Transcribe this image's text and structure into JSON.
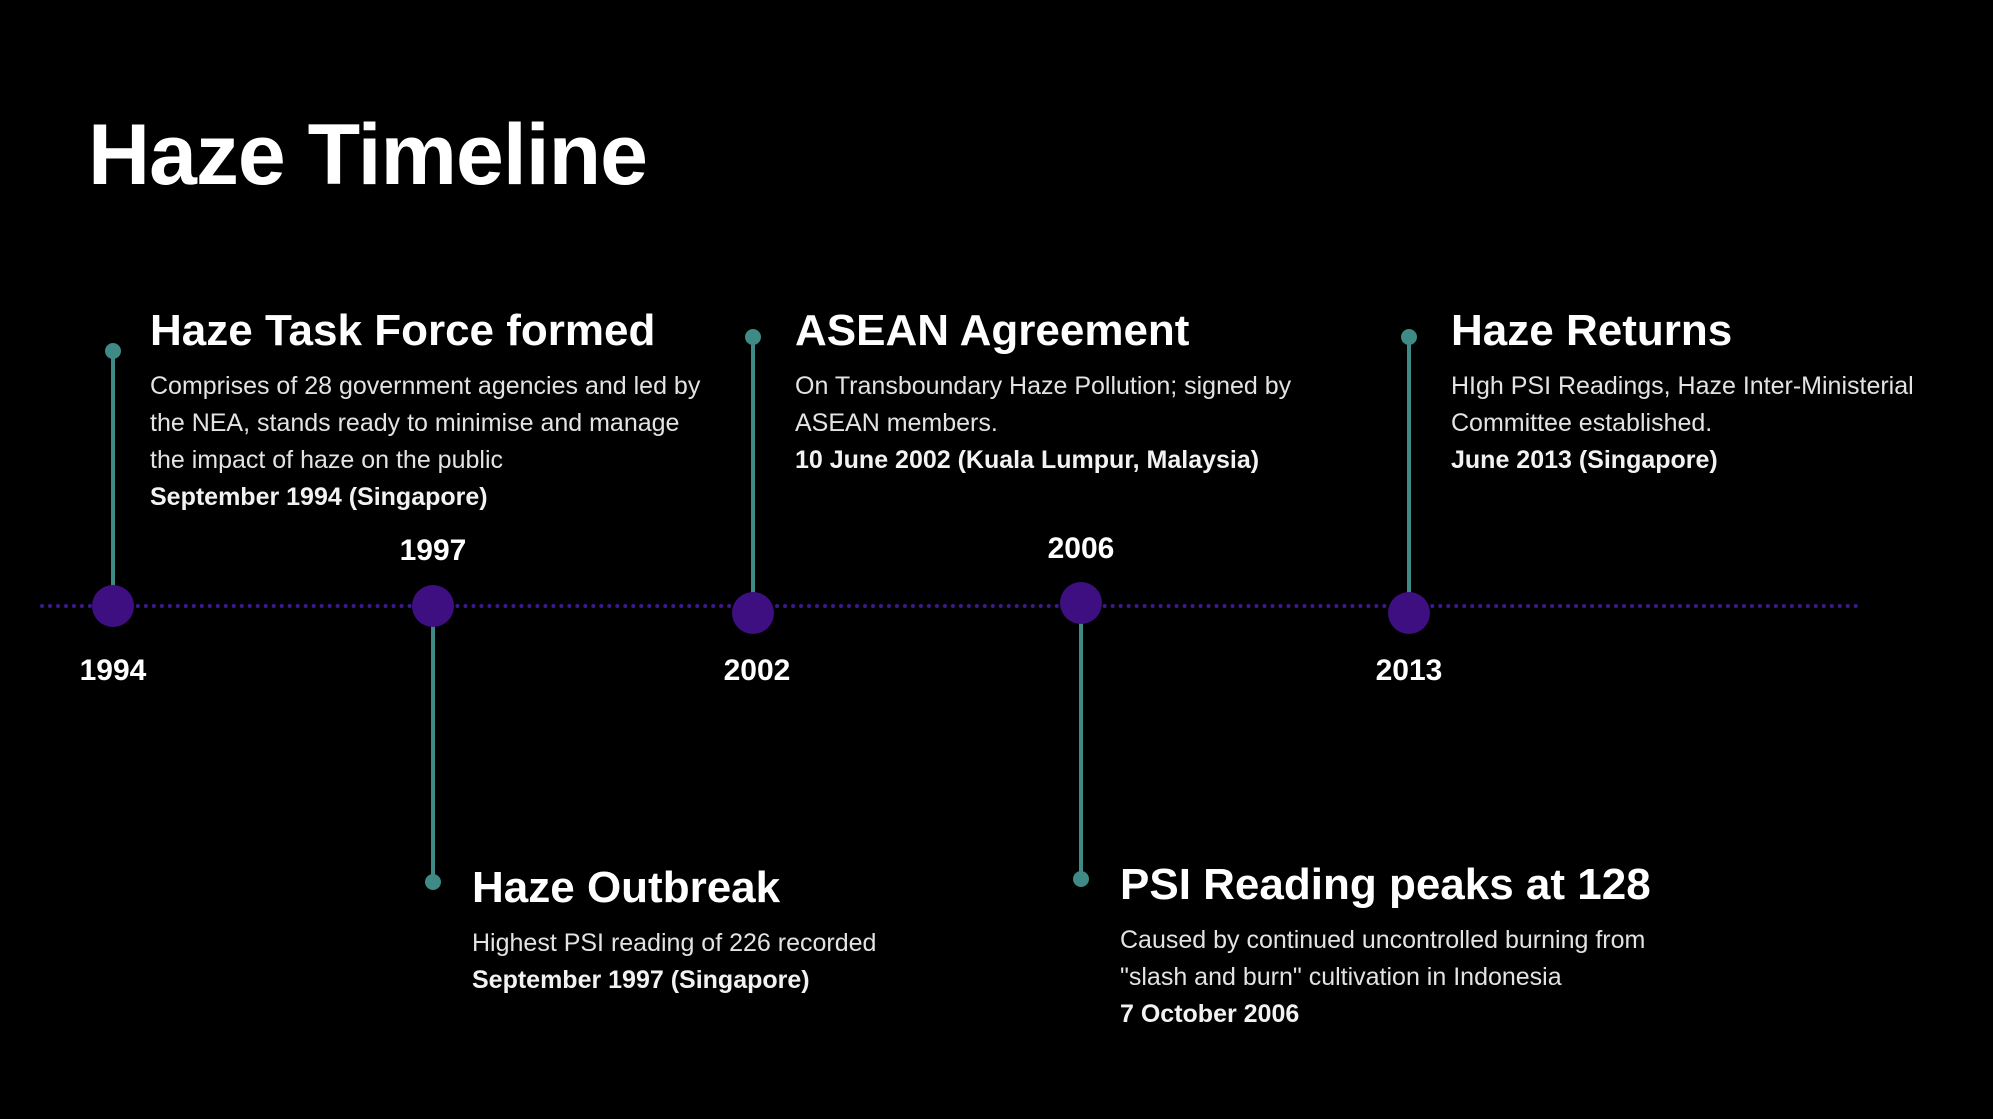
{
  "title": "Haze Timeline",
  "colors": {
    "background": "#000000",
    "stem": "#3f8a84",
    "node": "#3d0f80",
    "axis": "#3d1a8a"
  },
  "events": [
    {
      "year": "1994",
      "title": "Haze Task Force formed",
      "description": "Comprises of 28 government agencies and led by the NEA, stands ready to minimise and manage the impact of haze on the public",
      "date": "September 1994 (Singapore)"
    },
    {
      "year": "1997",
      "title": "Haze Outbreak",
      "description": "Highest PSI reading of 226 recorded",
      "date": "September 1997 (Singapore)"
    },
    {
      "year": "2002",
      "title": "ASEAN Agreement",
      "description": "On Transboundary Haze Pollution; signed by ASEAN members.",
      "date": "10 June 2002 (Kuala Lumpur, Malaysia)"
    },
    {
      "year": "2006",
      "title": "PSI Reading peaks at 128",
      "description": "Caused by continued uncontrolled burning from \"slash and burn\" cultivation in Indonesia",
      "date": "7 October 2006"
    },
    {
      "year": "2013",
      "title": "Haze Returns",
      "description": "HIgh PSI Readings, Haze Inter-Ministerial Committee established.",
      "date": "June 2013 (Singapore)"
    }
  ]
}
